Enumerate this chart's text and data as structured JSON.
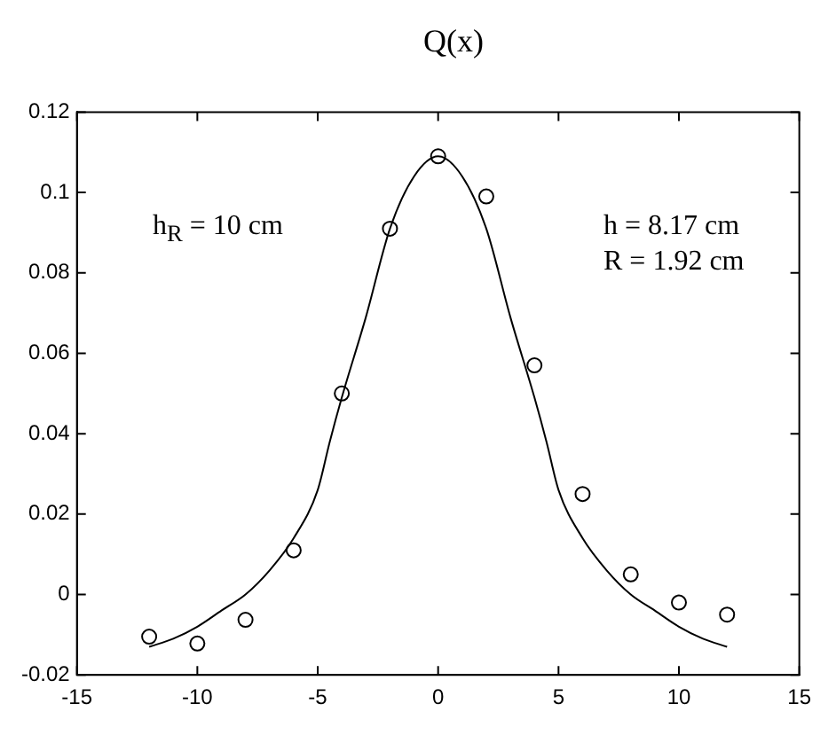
{
  "chart_data": {
    "type": "scatter",
    "title": "Q(x)",
    "xlim": [
      -15,
      15
    ],
    "xticks": [
      -15,
      -10,
      -5,
      0,
      5,
      10,
      15
    ],
    "ylim": [
      -0.02,
      0.12
    ],
    "yticks": [
      -0.02,
      0,
      0.02,
      0.04,
      0.06,
      0.08,
      0.1,
      0.12
    ],
    "grid": false,
    "legend": false,
    "annotations": [
      "h$_{R}$ = 10 cm",
      "h = 8.17 cm\nR = 1.92 cm"
    ],
    "series": [
      {
        "type": "scatter",
        "marker": "circle",
        "color": "#000000",
        "x": [
          -12,
          -10,
          -8,
          -6,
          -4,
          -2,
          0,
          2,
          4,
          6,
          8,
          10,
          12
        ],
        "values": [
          -0.0105,
          -0.0122,
          -0.0063,
          0.011,
          0.05,
          0.091,
          0.109,
          0.099,
          0.057,
          0.025,
          0.005,
          -0.002,
          -0.005
        ]
      },
      {
        "type": "line",
        "marker": "none",
        "line_style": "solid",
        "color": "#000000",
        "x": [
          -12,
          -11,
          -10,
          -9,
          -8,
          -7,
          -6,
          -5,
          -4.5,
          -4,
          -3,
          -2,
          -1,
          0,
          1,
          2,
          3,
          4,
          4.5,
          5,
          6,
          7,
          8,
          9,
          10,
          11,
          12
        ],
        "values": [
          -0.013,
          -0.011,
          -0.008,
          -0.004,
          0.0,
          0.006,
          0.014,
          0.026,
          0.038,
          0.049,
          0.069,
          0.091,
          0.104,
          0.109,
          0.104,
          0.091,
          0.069,
          0.049,
          0.038,
          0.026,
          0.014,
          0.006,
          0.0,
          -0.004,
          -0.008,
          -0.011,
          -0.013
        ]
      }
    ]
  }
}
